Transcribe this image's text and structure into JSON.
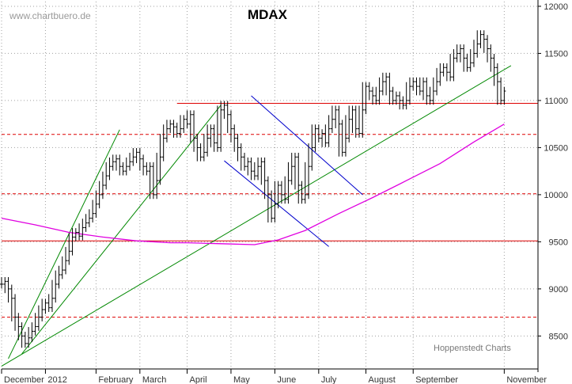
{
  "chart_data": {
    "type": "line",
    "title": "MDAX",
    "watermark": "www.chartbuero.de",
    "credit": "Hoppenstedt Charts",
    "yticks": [
      8500,
      9000,
      9500,
      10000,
      10500,
      11000,
      11500,
      12000
    ],
    "ylim": [
      8150,
      12050
    ],
    "xticks": [
      "December",
      "2012",
      "February",
      "March",
      "April",
      "May",
      "June",
      "July",
      "August",
      "September",
      "November"
    ],
    "grid": true,
    "series": [
      {
        "kind": "ohlc",
        "color": "#000000",
        "points": [
          [
            0,
            9050
          ],
          [
            1,
            9080
          ],
          [
            2,
            9000
          ],
          [
            3,
            8900
          ],
          [
            4,
            8700
          ],
          [
            5,
            8600
          ],
          [
            6,
            8500
          ],
          [
            7,
            8420
          ],
          [
            8,
            8480
          ],
          [
            9,
            8550
          ],
          [
            10,
            8600
          ],
          [
            11,
            8700
          ],
          [
            12,
            8780
          ],
          [
            13,
            8850
          ],
          [
            14,
            8800
          ],
          [
            15,
            8900
          ],
          [
            16,
            9050
          ],
          [
            17,
            9150
          ],
          [
            18,
            9200
          ],
          [
            19,
            9300
          ],
          [
            20,
            9400
          ],
          [
            21,
            9550
          ],
          [
            22,
            9600
          ],
          [
            23,
            9560
          ],
          [
            24,
            9650
          ],
          [
            25,
            9700
          ],
          [
            26,
            9750
          ],
          [
            27,
            9800
          ],
          [
            28,
            9900
          ],
          [
            29,
            10000
          ],
          [
            30,
            10100
          ],
          [
            31,
            10200
          ],
          [
            32,
            10300
          ],
          [
            33,
            10350
          ],
          [
            34,
            10380
          ],
          [
            35,
            10300
          ],
          [
            36,
            10250
          ],
          [
            37,
            10300
          ],
          [
            38,
            10350
          ],
          [
            39,
            10400
          ],
          [
            40,
            10450
          ],
          [
            41,
            10380
          ],
          [
            42,
            10300
          ],
          [
            43,
            10250
          ],
          [
            44,
            10300
          ],
          [
            45,
            10000
          ],
          [
            46,
            10150
          ],
          [
            47,
            10400
          ],
          [
            48,
            10600
          ],
          [
            49,
            10700
          ],
          [
            50,
            10750
          ],
          [
            51,
            10720
          ],
          [
            52,
            10650
          ],
          [
            53,
            10700
          ],
          [
            54,
            10800
          ],
          [
            55,
            10750
          ],
          [
            56,
            10850
          ],
          [
            57,
            10600
          ],
          [
            58,
            10500
          ],
          [
            59,
            10400
          ],
          [
            60,
            10450
          ],
          [
            61,
            10600
          ],
          [
            62,
            10700
          ],
          [
            63,
            10550
          ],
          [
            64,
            10500
          ],
          [
            65,
            10900
          ],
          [
            66,
            10950
          ],
          [
            67,
            10850
          ],
          [
            68,
            10700
          ],
          [
            69,
            10600
          ],
          [
            70,
            10500
          ],
          [
            71,
            10400
          ],
          [
            72,
            10300
          ],
          [
            73,
            10350
          ],
          [
            74,
            10250
          ],
          [
            75,
            10200
          ],
          [
            76,
            10300
          ],
          [
            77,
            10350
          ],
          [
            78,
            10150
          ],
          [
            79,
            10000
          ],
          [
            80,
            9750
          ],
          [
            81,
            9900
          ],
          [
            82,
            10100
          ],
          [
            83,
            10000
          ],
          [
            84,
            9950
          ],
          [
            85,
            10150
          ],
          [
            86,
            10300
          ],
          [
            87,
            10400
          ],
          [
            88,
            10100
          ],
          [
            89,
            9950
          ],
          [
            90,
            10000
          ],
          [
            91,
            10300
          ],
          [
            92,
            10500
          ],
          [
            93,
            10700
          ],
          [
            94,
            10600
          ],
          [
            95,
            10650
          ],
          [
            96,
            10550
          ],
          [
            97,
            10700
          ],
          [
            98,
            10800
          ],
          [
            99,
            10900
          ],
          [
            100,
            10750
          ],
          [
            101,
            10450
          ],
          [
            102,
            10600
          ],
          [
            103,
            10800
          ],
          [
            104,
            10900
          ],
          [
            105,
            10700
          ],
          [
            106,
            10650
          ],
          [
            107,
            10900
          ],
          [
            108,
            11150
          ],
          [
            109,
            11100
          ],
          [
            110,
            11050
          ],
          [
            111,
            11000
          ],
          [
            112,
            11100
          ],
          [
            113,
            11200
          ],
          [
            114,
            11250
          ],
          [
            115,
            11100
          ],
          [
            116,
            11000
          ],
          [
            117,
            11050
          ],
          [
            118,
            11000
          ],
          [
            119,
            10950
          ],
          [
            120,
            11000
          ],
          [
            121,
            11150
          ],
          [
            122,
            11200
          ],
          [
            123,
            11150
          ],
          [
            124,
            11100
          ],
          [
            125,
            11200
          ],
          [
            126,
            11050
          ],
          [
            127,
            11000
          ],
          [
            128,
            11100
          ],
          [
            129,
            11200
          ],
          [
            130,
            11300
          ],
          [
            131,
            11350
          ],
          [
            132,
            11300
          ],
          [
            133,
            11250
          ],
          [
            134,
            11450
          ],
          [
            135,
            11500
          ],
          [
            136,
            11550
          ],
          [
            137,
            11450
          ],
          [
            138,
            11350
          ],
          [
            139,
            11400
          ],
          [
            140,
            11500
          ],
          [
            141,
            11600
          ],
          [
            142,
            11700
          ],
          [
            143,
            11650
          ],
          [
            144,
            11550
          ],
          [
            145,
            11450
          ],
          [
            146,
            11350
          ],
          [
            147,
            11200
          ],
          [
            148,
            11000
          ],
          [
            149,
            11100
          ]
        ]
      },
      {
        "kind": "moving-average",
        "color": "#e000e0",
        "points": [
          [
            0,
            9750
          ],
          [
            10,
            9680
          ],
          [
            20,
            9600
          ],
          [
            30,
            9550
          ],
          [
            40,
            9510
          ],
          [
            50,
            9490
          ],
          [
            55,
            9490
          ],
          [
            65,
            9480
          ],
          [
            75,
            9470
          ],
          [
            82,
            9520
          ],
          [
            90,
            9620
          ],
          [
            100,
            9800
          ],
          [
            110,
            9970
          ],
          [
            120,
            10150
          ],
          [
            130,
            10330
          ],
          [
            140,
            10560
          ],
          [
            149,
            10750
          ]
        ]
      }
    ],
    "lines": [
      {
        "name": "support-red-upper",
        "color": "#dd0000",
        "style": "solid",
        "from": [
          52,
          10970
        ],
        "to": [
          159,
          10970
        ]
      },
      {
        "name": "support-red-lower",
        "color": "#dd0000",
        "style": "solid",
        "from": [
          0,
          9510
        ],
        "to": [
          159,
          9510
        ]
      },
      {
        "name": "dash-10640",
        "color": "#dd0000",
        "style": "dashed",
        "from": [
          0,
          10640
        ],
        "to": [
          159,
          10640
        ]
      },
      {
        "name": "dash-10010",
        "color": "#dd0000",
        "style": "dashed",
        "from": [
          0,
          10010
        ],
        "to": [
          159,
          10010
        ]
      },
      {
        "name": "dash-8700",
        "color": "#dd0000",
        "style": "dashed",
        "from": [
          0,
          8700
        ],
        "to": [
          159,
          8700
        ]
      },
      {
        "name": "trend-green-long",
        "color": "#008800",
        "style": "solid",
        "from": [
          0,
          8180
        ],
        "to": [
          151,
          11370
        ]
      },
      {
        "name": "trend-green-steep-1",
        "color": "#008800",
        "style": "solid",
        "from": [
          2,
          8260
        ],
        "to": [
          35,
          10690
        ]
      },
      {
        "name": "trend-green-steep-2",
        "color": "#008800",
        "style": "solid",
        "from": [
          6,
          8310
        ],
        "to": [
          65,
          10950
        ]
      },
      {
        "name": "channel-blue-upper",
        "color": "#0000cc",
        "style": "solid",
        "from": [
          74,
          11050
        ],
        "to": [
          107,
          10000
        ]
      },
      {
        "name": "channel-blue-lower",
        "color": "#0000cc",
        "style": "solid",
        "from": [
          66,
          10360
        ],
        "to": [
          97,
          9450
        ]
      }
    ]
  }
}
